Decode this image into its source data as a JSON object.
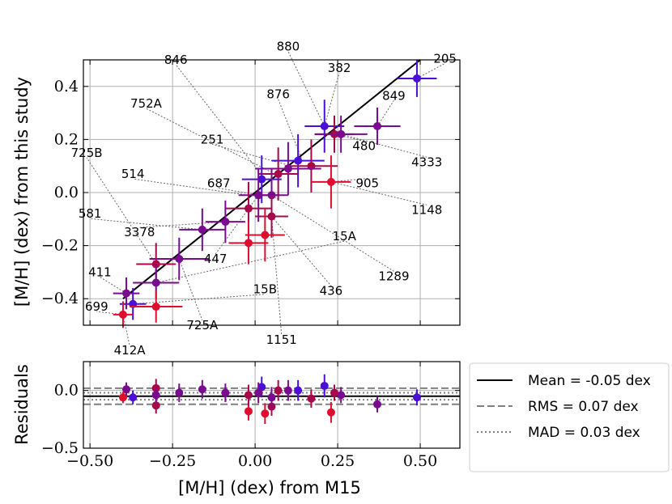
{
  "chart_data": {
    "type": "scatter",
    "colors": {
      "errorbars": [
        "#4b0fd8",
        "#7a0a8f",
        "#a8084a",
        "#e00d2e"
      ],
      "identity_line": "#000000",
      "grid": "#b0b0b0",
      "reference_lines": "#808080"
    },
    "main_panel": {
      "xlabel": "[M/H] (dex) from M15",
      "ylabel": "[M/H] (dex) from this study",
      "xlim": [
        -0.52,
        0.62
      ],
      "ylim": [
        -0.5,
        0.5
      ],
      "xticks": [
        -0.5,
        -0.25,
        0.0,
        0.25,
        0.5
      ],
      "yticks": [
        -0.4,
        -0.2,
        0.0,
        0.2,
        0.4
      ],
      "ytick_labels": [
        "−0.4",
        "−0.2",
        "0.0",
        "0.2",
        "0.4"
      ],
      "identity_line": {
        "x": [
          -0.4,
          0.5
        ],
        "y": [
          -0.4,
          0.5
        ]
      },
      "points": [
        {
          "x": 0.49,
          "y": 0.43,
          "xerr": 0.06,
          "yerr": 0.07,
          "color": "#4b0fd8"
        },
        {
          "x": 0.21,
          "y": 0.25,
          "xerr": 0.06,
          "yerr": 0.1,
          "color": "#4b0fd8"
        },
        {
          "x": 0.37,
          "y": 0.25,
          "xerr": 0.07,
          "yerr": 0.07,
          "color": "#7a0a8f"
        },
        {
          "x": 0.24,
          "y": 0.22,
          "xerr": 0.06,
          "yerr": 0.07,
          "color": "#a8084a"
        },
        {
          "x": 0.26,
          "y": 0.22,
          "xerr": 0.08,
          "yerr": 0.07,
          "color": "#7a0a8f"
        },
        {
          "x": 0.13,
          "y": 0.12,
          "xerr": 0.08,
          "yerr": 0.1,
          "color": "#4b0fd8"
        },
        {
          "x": 0.17,
          "y": 0.1,
          "xerr": 0.08,
          "yerr": 0.1,
          "color": "#a8084a"
        },
        {
          "x": 0.1,
          "y": 0.09,
          "xerr": 0.1,
          "yerr": 0.1,
          "color": "#7a0a8f"
        },
        {
          "x": 0.07,
          "y": 0.07,
          "xerr": 0.06,
          "yerr": 0.1,
          "color": "#a8084a"
        },
        {
          "x": 0.02,
          "y": 0.05,
          "xerr": 0.06,
          "yerr": 0.09,
          "color": "#4b0fd8"
        },
        {
          "x": 0.23,
          "y": 0.04,
          "xerr": 0.06,
          "yerr": 0.1,
          "color": "#e00d2e"
        },
        {
          "x": 0.01,
          "y": -0.01,
          "xerr": 0.06,
          "yerr": 0.1,
          "color": "#7a0a8f"
        },
        {
          "x": 0.05,
          "y": -0.01,
          "xerr": 0.05,
          "yerr": 0.1,
          "color": "#7a0a8f"
        },
        {
          "x": -0.02,
          "y": -0.06,
          "xerr": 0.07,
          "yerr": 0.1,
          "color": "#a8084a"
        },
        {
          "x": 0.05,
          "y": -0.09,
          "xerr": 0.05,
          "yerr": 0.08,
          "color": "#a8084a"
        },
        {
          "x": -0.09,
          "y": -0.11,
          "xerr": 0.06,
          "yerr": 0.08,
          "color": "#7a0a8f"
        },
        {
          "x": -0.16,
          "y": -0.14,
          "xerr": 0.07,
          "yerr": 0.08,
          "color": "#7a0a8f"
        },
        {
          "x": 0.03,
          "y": -0.16,
          "xerr": 0.06,
          "yerr": 0.1,
          "color": "#e00d2e"
        },
        {
          "x": -0.02,
          "y": -0.19,
          "xerr": 0.06,
          "yerr": 0.08,
          "color": "#e00d2e"
        },
        {
          "x": -0.23,
          "y": -0.25,
          "xerr": 0.09,
          "yerr": 0.08,
          "color": "#7a0a8f"
        },
        {
          "x": -0.3,
          "y": -0.27,
          "xerr": 0.06,
          "yerr": 0.08,
          "color": "#a8084a"
        },
        {
          "x": -0.3,
          "y": -0.34,
          "xerr": 0.07,
          "yerr": 0.06,
          "color": "#7a0a8f"
        },
        {
          "x": -0.39,
          "y": -0.38,
          "xerr": 0.04,
          "yerr": 0.06,
          "color": "#7a0a8f"
        },
        {
          "x": -0.37,
          "y": -0.42,
          "xerr": 0.04,
          "yerr": 0.06,
          "color": "#4b0fd8"
        },
        {
          "x": -0.3,
          "y": -0.43,
          "xerr": 0.08,
          "yerr": 0.06,
          "color": "#e00d2e"
        },
        {
          "x": -0.4,
          "y": -0.46,
          "xerr": 0.03,
          "yerr": 0.05,
          "color": "#e00d2e"
        }
      ],
      "annotations": [
        {
          "text": "205",
          "px": 0.49,
          "py": 0.43,
          "tx": 0.575,
          "ty": 0.505,
          "anchor": "middle"
        },
        {
          "text": "880",
          "px": 0.21,
          "py": 0.25,
          "tx": 0.1,
          "ty": 0.55,
          "anchor": "middle"
        },
        {
          "text": "382",
          "px": 0.21,
          "py": 0.25,
          "tx": 0.255,
          "ty": 0.47,
          "anchor": "middle"
        },
        {
          "text": "846",
          "px": 0.03,
          "py": 0.05,
          "tx": -0.24,
          "ty": 0.5,
          "anchor": "middle"
        },
        {
          "text": "849",
          "px": 0.37,
          "py": 0.25,
          "tx": 0.42,
          "ty": 0.365,
          "anchor": "middle"
        },
        {
          "text": "876",
          "px": 0.14,
          "py": 0.13,
          "tx": 0.07,
          "ty": 0.37,
          "anchor": "middle"
        },
        {
          "text": "752A",
          "px": 0.06,
          "py": 0.07,
          "tx": -0.33,
          "ty": 0.335,
          "anchor": "middle"
        },
        {
          "text": "480",
          "px": 0.24,
          "py": 0.22,
          "tx": 0.33,
          "ty": 0.175,
          "anchor": "middle"
        },
        {
          "text": "4333",
          "px": 0.26,
          "py": 0.22,
          "tx": 0.52,
          "ty": 0.115,
          "anchor": "middle"
        },
        {
          "text": "251",
          "px": 0.11,
          "py": 0.1,
          "tx": -0.13,
          "ty": 0.2,
          "anchor": "middle"
        },
        {
          "text": "725B",
          "px": -0.3,
          "py": -0.27,
          "tx": -0.51,
          "ty": 0.15,
          "anchor": "middle"
        },
        {
          "text": "514",
          "px": -0.02,
          "py": -0.01,
          "tx": -0.37,
          "ty": 0.07,
          "anchor": "middle"
        },
        {
          "text": "687",
          "px": 0.01,
          "py": -0.01,
          "tx": -0.11,
          "ty": 0.035,
          "anchor": "middle"
        },
        {
          "text": "905",
          "px": 0.23,
          "py": 0.04,
          "tx": 0.34,
          "ty": 0.035,
          "anchor": "middle"
        },
        {
          "text": "1148",
          "px": 0.23,
          "py": 0.04,
          "tx": 0.52,
          "ty": -0.065,
          "anchor": "middle"
        },
        {
          "text": "581",
          "px": -0.16,
          "py": -0.14,
          "tx": -0.5,
          "ty": -0.08,
          "anchor": "middle"
        },
        {
          "text": "3378",
          "px": -0.09,
          "py": -0.11,
          "tx": -0.35,
          "ty": -0.15,
          "anchor": "middle"
        },
        {
          "text": "15A",
          "px": -0.3,
          "py": -0.34,
          "tx": 0.27,
          "ty": -0.165,
          "anchor": "middle"
        },
        {
          "text": "447",
          "px": 0.01,
          "py": -0.01,
          "tx": -0.12,
          "ty": -0.25,
          "anchor": "middle"
        },
        {
          "text": "1289",
          "px": 0.05,
          "py": -0.01,
          "tx": 0.42,
          "ty": -0.315,
          "anchor": "middle"
        },
        {
          "text": "411",
          "px": -0.39,
          "py": -0.38,
          "tx": -0.47,
          "ty": -0.3,
          "anchor": "middle"
        },
        {
          "text": "436",
          "px": 0.05,
          "py": -0.09,
          "tx": 0.23,
          "ty": -0.37,
          "anchor": "middle"
        },
        {
          "text": "15B",
          "px": -0.37,
          "py": -0.42,
          "tx": 0.03,
          "ty": -0.365,
          "anchor": "middle"
        },
        {
          "text": "699",
          "px": -0.4,
          "py": -0.46,
          "tx": -0.48,
          "ty": -0.43,
          "anchor": "middle"
        },
        {
          "text": "725A",
          "px": -0.23,
          "py": -0.25,
          "tx": -0.16,
          "ty": -0.5,
          "anchor": "middle"
        },
        {
          "text": "1151",
          "px": 0.05,
          "py": -0.09,
          "tx": 0.08,
          "ty": -0.555,
          "anchor": "middle"
        },
        {
          "text": "412A",
          "px": -0.4,
          "py": -0.46,
          "tx": -0.38,
          "ty": -0.595,
          "anchor": "middle"
        }
      ]
    },
    "residual_panel": {
      "ylabel": "Residuals",
      "ylim": [
        -0.5,
        0.25
      ],
      "yticks": [
        0.0,
        -0.5
      ],
      "ytick_labels": [
        "0.0",
        "−0.5"
      ],
      "xtick_labels": [
        "−0.50",
        "−0.25",
        "0.00",
        "0.25",
        "0.50"
      ],
      "mean_line": -0.05,
      "rms_lines": [
        0.02,
        -0.12
      ],
      "mad_lines": [
        -0.02,
        -0.08
      ],
      "points": [
        {
          "x": 0.49,
          "y": -0.06,
          "yerr": 0.07,
          "color": "#4b0fd8"
        },
        {
          "x": 0.37,
          "y": -0.12,
          "yerr": 0.07,
          "color": "#7a0a8f"
        },
        {
          "x": 0.26,
          "y": -0.04,
          "yerr": 0.07,
          "color": "#7a0a8f"
        },
        {
          "x": 0.24,
          "y": -0.02,
          "yerr": 0.07,
          "color": "#a8084a"
        },
        {
          "x": 0.23,
          "y": -0.19,
          "yerr": 0.09,
          "color": "#e00d2e"
        },
        {
          "x": 0.21,
          "y": 0.04,
          "yerr": 0.1,
          "color": "#4b0fd8"
        },
        {
          "x": 0.17,
          "y": -0.07,
          "yerr": 0.08,
          "color": "#a8084a"
        },
        {
          "x": 0.13,
          "y": 0.0,
          "yerr": 0.09,
          "color": "#4b0fd8"
        },
        {
          "x": 0.1,
          "y": 0.0,
          "yerr": 0.09,
          "color": "#7a0a8f"
        },
        {
          "x": 0.07,
          "y": 0.0,
          "yerr": 0.09,
          "color": "#a8084a"
        },
        {
          "x": 0.05,
          "y": -0.14,
          "yerr": 0.08,
          "color": "#a8084a"
        },
        {
          "x": 0.05,
          "y": -0.06,
          "yerr": 0.09,
          "color": "#7a0a8f"
        },
        {
          "x": 0.03,
          "y": -0.2,
          "yerr": 0.09,
          "color": "#e00d2e"
        },
        {
          "x": 0.02,
          "y": 0.03,
          "yerr": 0.09,
          "color": "#4b0fd8"
        },
        {
          "x": 0.01,
          "y": -0.02,
          "yerr": 0.09,
          "color": "#7a0a8f"
        },
        {
          "x": -0.02,
          "y": -0.18,
          "yerr": 0.08,
          "color": "#e00d2e"
        },
        {
          "x": -0.02,
          "y": -0.04,
          "yerr": 0.09,
          "color": "#a8084a"
        },
        {
          "x": -0.09,
          "y": -0.02,
          "yerr": 0.08,
          "color": "#7a0a8f"
        },
        {
          "x": -0.16,
          "y": 0.01,
          "yerr": 0.08,
          "color": "#7a0a8f"
        },
        {
          "x": -0.23,
          "y": -0.02,
          "yerr": 0.08,
          "color": "#7a0a8f"
        },
        {
          "x": -0.3,
          "y": 0.02,
          "yerr": 0.08,
          "color": "#a8084a"
        },
        {
          "x": -0.3,
          "y": -0.13,
          "yerr": 0.07,
          "color": "#a8084a"
        },
        {
          "x": -0.3,
          "y": -0.04,
          "yerr": 0.06,
          "color": "#7a0a8f"
        },
        {
          "x": -0.37,
          "y": -0.06,
          "yerr": 0.06,
          "color": "#4b0fd8"
        },
        {
          "x": -0.39,
          "y": 0.01,
          "yerr": 0.06,
          "color": "#7a0a8f"
        },
        {
          "x": -0.4,
          "y": -0.06,
          "yerr": 0.05,
          "color": "#e00d2e"
        }
      ]
    },
    "legend": {
      "placement": "right of residual panel",
      "entries": [
        {
          "label": "Mean = -0.05 dex",
          "style": "solid",
          "color": "#000000"
        },
        {
          "label": "RMS = 0.07 dex",
          "style": "dashed",
          "color": "#808080"
        },
        {
          "label": "MAD = 0.03 dex",
          "style": "dotted",
          "color": "#808080"
        }
      ]
    }
  }
}
